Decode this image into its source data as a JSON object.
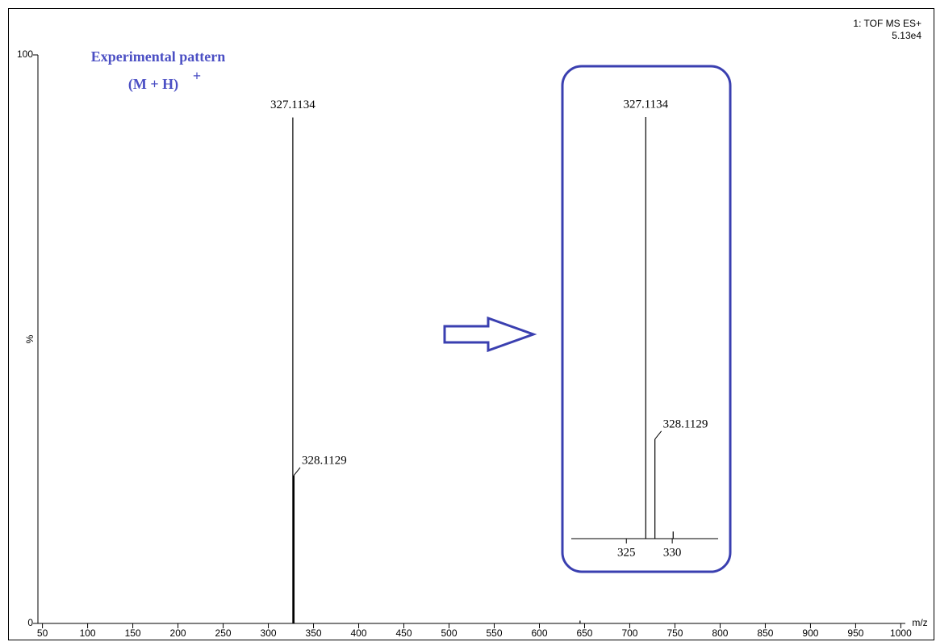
{
  "chart_data": [
    {
      "type": "stick",
      "instrument": "1: TOF MS ES+",
      "intensity": "5.13e4",
      "annotation": "Experimental pattern",
      "ion": "(M + H)",
      "charge": "+",
      "y_label": "%",
      "x_label": "m/z",
      "color": "#000000",
      "x": [
        327.1134,
        328.1129,
        645
      ],
      "values": [
        89,
        26,
        0.5
      ],
      "x_labels": [
        "327.1134",
        "328.1129",
        null
      ],
      "xlim": [
        45,
        1005
      ],
      "ylim": [
        0,
        100
      ],
      "xticks": [
        50,
        100,
        150,
        200,
        250,
        300,
        350,
        400,
        450,
        500,
        550,
        600,
        650,
        700,
        750,
        800,
        850,
        900,
        950,
        1000
      ],
      "yticks": [
        0,
        100
      ]
    },
    {
      "type": "stick",
      "color": "#000000",
      "x": [
        327.1134,
        328.1129,
        330.1
      ],
      "values": [
        89,
        21,
        1.5
      ],
      "x_labels": [
        "327.1134",
        "328.1129",
        null
      ],
      "xlim": [
        319,
        335
      ],
      "ylim": [
        0,
        100
      ],
      "xticks": [
        325,
        330
      ]
    }
  ]
}
